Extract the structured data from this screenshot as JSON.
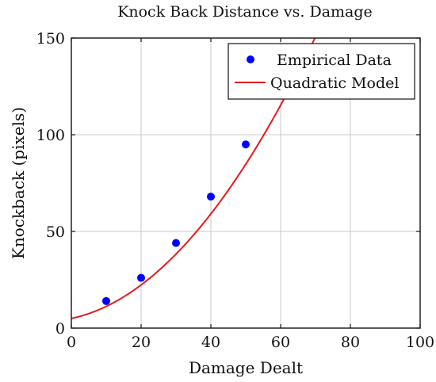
{
  "chart_data": {
    "type": "scatter",
    "title": "Knock Back Distance vs. Damage",
    "xlabel": "Damage Dealt",
    "ylabel": "Knockback (pixels)",
    "xlim": [
      0,
      100
    ],
    "ylim": [
      0,
      150
    ],
    "xticks": [
      "0",
      "20",
      "40",
      "60",
      "80",
      "100"
    ],
    "yticks": [
      "0",
      "50",
      "100",
      "150"
    ],
    "grid": true,
    "legend_position": "top-right",
    "series": [
      {
        "name": "Empirical Data",
        "kind": "scatter",
        "color": "#0000ff",
        "x": [
          10,
          20,
          30,
          40,
          50
        ],
        "y": [
          14,
          26,
          44,
          68,
          95
        ]
      },
      {
        "name": "Quadratic Model",
        "kind": "line",
        "color": "#e41a1c",
        "model": {
          "a": 0.0243,
          "b": 0.38,
          "c": 5
        }
      }
    ]
  }
}
